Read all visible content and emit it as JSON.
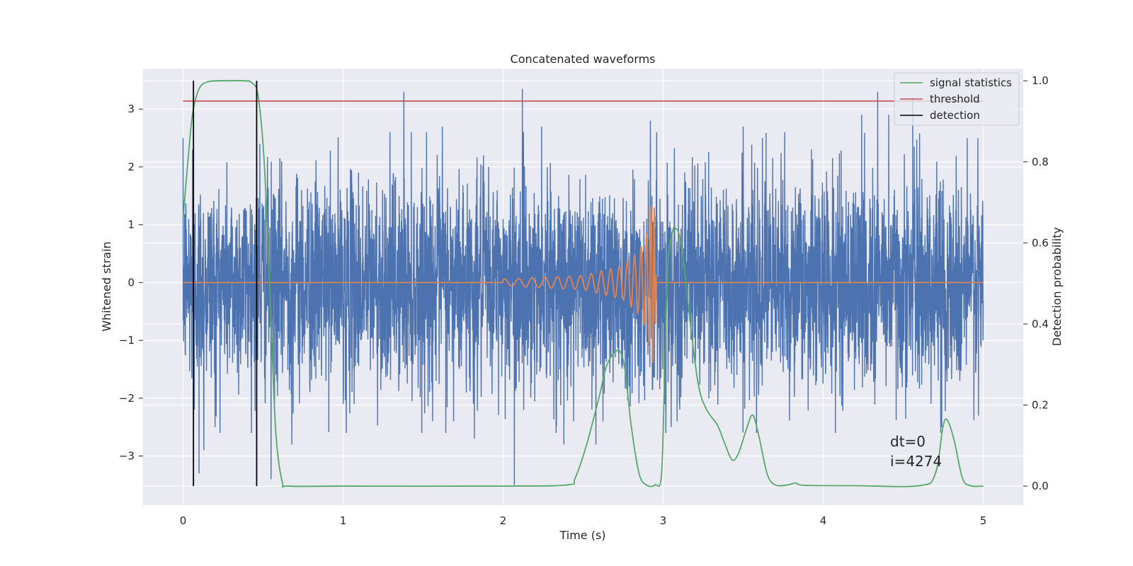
{
  "chart_data": {
    "type": "line",
    "title": "Concatenated waveforms",
    "xlabel": "Time (s)",
    "ylabel_left": "Whitened strain",
    "ylabel_right": "Detection probability",
    "xlim": [
      -0.25,
      5.25
    ],
    "ylim_left": [
      -3.85,
      3.7
    ],
    "ylim_right": [
      -0.047,
      1.03
    ],
    "x_ticks": [
      0,
      1,
      2,
      3,
      4,
      5
    ],
    "y_ticks_left": [
      -3,
      -2,
      -1,
      0,
      1,
      2,
      3
    ],
    "y_ticks_right": [
      0.0,
      0.2,
      0.4,
      0.6,
      0.8,
      1.0
    ],
    "grid": true,
    "legend_position": "top-right",
    "colors": {
      "strain": "#4c72b0",
      "template": "#dd8452",
      "statistics": "#55a868",
      "threshold": "#c44e52",
      "detection": "#000000",
      "background": "#eaeaf2",
      "grid": "#ffffff"
    },
    "series": [
      {
        "name": "",
        "axis": "left",
        "kind": "noise",
        "x_range": [
          0,
          5
        ],
        "std": 0.9,
        "extremes": [
          [
            0.06,
            2.3
          ],
          [
            0.07,
            -2.2
          ],
          [
            0.1,
            -3.3
          ],
          [
            0.13,
            -2.9
          ],
          [
            0.2,
            -2.5
          ],
          [
            0.48,
            2.4
          ],
          [
            0.55,
            -3.4
          ],
          [
            0.68,
            -2.8
          ],
          [
            0.74,
            1.6
          ],
          [
            1.02,
            -2.6
          ],
          [
            1.38,
            3.3
          ],
          [
            1.56,
            -2.4
          ],
          [
            1.62,
            2.7
          ],
          [
            1.69,
            -2.4
          ],
          [
            1.82,
            -2.7
          ],
          [
            2.07,
            -3.5
          ],
          [
            2.12,
            3.35
          ],
          [
            2.24,
            2.7
          ],
          [
            2.38,
            -2.8
          ],
          [
            2.44,
            -2.4
          ],
          [
            2.58,
            -2.8
          ],
          [
            2.92,
            2.8
          ],
          [
            3.05,
            -2.5
          ],
          [
            3.5,
            2.7
          ],
          [
            3.62,
            2.5
          ],
          [
            3.76,
            2.6
          ],
          [
            4.24,
            2.9
          ],
          [
            4.34,
            3.3
          ],
          [
            4.41,
            2.9
          ],
          [
            4.56,
            3.2
          ],
          [
            4.74,
            -2.5
          ],
          [
            4.9,
            2.5
          ],
          [
            4.97,
            -2.3
          ]
        ]
      },
      {
        "name": "",
        "axis": "left",
        "kind": "chirp",
        "x": [
          0,
          2.0,
          2.5,
          2.75,
          2.85,
          2.9,
          2.93,
          2.945,
          2.96,
          5
        ],
        "amplitude": [
          0,
          0.06,
          0.12,
          0.3,
          0.55,
          0.85,
          1.45,
          1.3,
          0,
          0
        ]
      },
      {
        "name": "signal statistics",
        "axis": "right",
        "x": [
          0.0,
          0.03,
          0.06,
          0.1,
          0.15,
          0.22,
          0.3,
          0.38,
          0.43,
          0.47,
          0.51,
          0.55,
          0.58,
          0.62,
          0.66,
          1.0,
          2.0,
          2.4,
          2.45,
          2.52,
          2.6,
          2.65,
          2.72,
          2.76,
          2.8,
          2.85,
          2.9,
          2.95,
          2.99,
          3.01,
          3.03,
          3.06,
          3.08,
          3.1,
          3.13,
          3.17,
          3.22,
          3.27,
          3.34,
          3.38,
          3.43,
          3.47,
          3.52,
          3.56,
          3.6,
          3.65,
          3.7,
          3.78,
          3.83,
          3.88,
          4.2,
          4.6,
          4.7,
          4.75,
          4.78,
          4.82,
          4.87,
          4.92,
          5.0
        ],
        "values": [
          0.66,
          0.8,
          0.92,
          0.98,
          0.997,
          1.0,
          1.0,
          1.0,
          0.995,
          0.96,
          0.78,
          0.4,
          0.13,
          0.01,
          0.0,
          0.0,
          0.0,
          0.003,
          0.02,
          0.1,
          0.22,
          0.3,
          0.335,
          0.29,
          0.15,
          0.03,
          0.002,
          0.003,
          0.03,
          0.3,
          0.55,
          0.63,
          0.635,
          0.62,
          0.55,
          0.4,
          0.25,
          0.19,
          0.15,
          0.11,
          0.065,
          0.08,
          0.14,
          0.175,
          0.12,
          0.03,
          0.003,
          0.003,
          0.008,
          0.002,
          0.001,
          0.001,
          0.03,
          0.15,
          0.16,
          0.11,
          0.02,
          0.001,
          0.0
        ]
      },
      {
        "name": "threshold",
        "axis": "right",
        "x": [
          0,
          5
        ],
        "values": [
          0.95,
          0.95
        ]
      },
      {
        "name": "detection",
        "axis": "right",
        "kind": "vlines",
        "x": [
          0.065,
          0.46
        ],
        "y_range": [
          0,
          1.0
        ]
      }
    ],
    "annotations": [
      "dt=0",
      "i=4274"
    ]
  }
}
